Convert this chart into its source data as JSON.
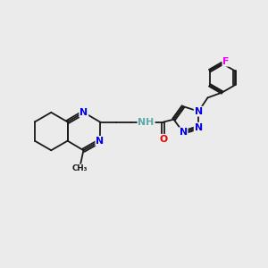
{
  "background_color": "#ebebeb",
  "bond_color": "#1a1a1a",
  "atom_colors": {
    "N": "#0000ee",
    "O": "#ee0000",
    "F": "#ee00ee",
    "C": "#1a1a1a",
    "H": "#5fa8a8"
  },
  "lw": 1.3,
  "fs": 7.8
}
